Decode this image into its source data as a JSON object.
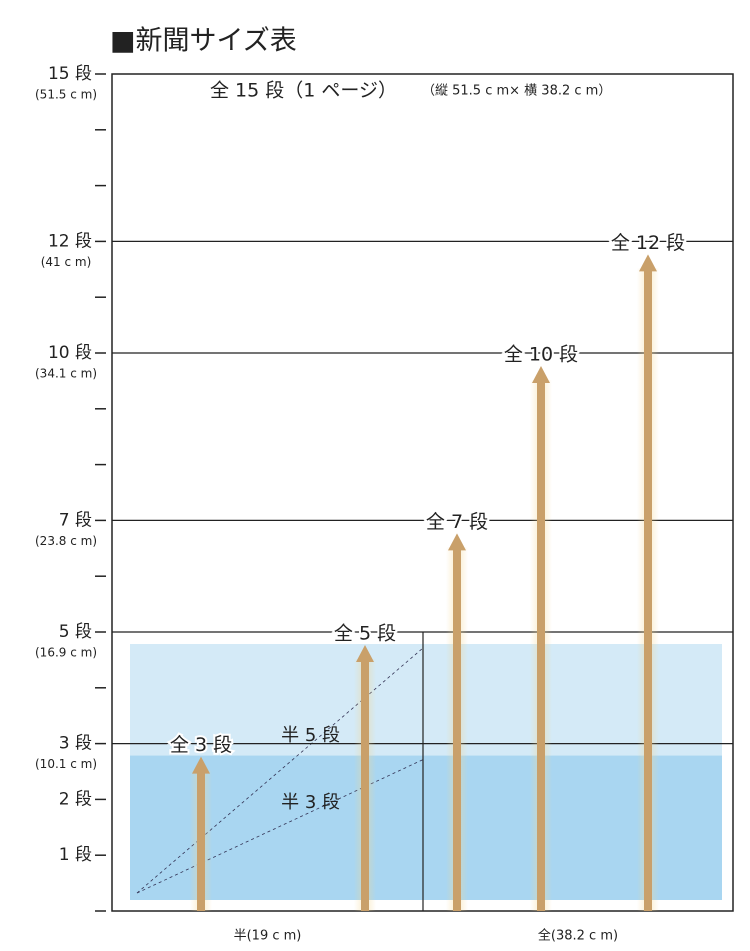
{
  "chart_data": {
    "type": "arrow",
    "title": "■新聞サイズ表",
    "note": "全 15 段（1 ページ）",
    "note_detail": "（縦 51.5 c m× 横 38.2 c m）",
    "categories": [
      "全 3 段",
      "全 5 段",
      "全 7 段",
      "全 10 段",
      "全 12 段"
    ],
    "values": [
      3,
      5,
      7,
      10,
      12
    ],
    "color": "#c9a06a",
    "ylim": [
      0,
      15
    ],
    "yticks": [
      {
        "value": 15,
        "label": "15 段",
        "note": "(51.5 c m)"
      },
      {
        "value": 12,
        "label": "12 段",
        "note": "(41 c m)"
      },
      {
        "value": 10,
        "label": "10 段",
        "note": "(34.1 c m)"
      },
      {
        "value": 7,
        "label": "7 段",
        "note": "(23.8 c m)"
      },
      {
        "value": 5,
        "label": "5 段",
        "note": "(16.9 c m)"
      },
      {
        "value": 3,
        "label": "3 段",
        "note": "(10.1 c m)"
      },
      {
        "value": 2,
        "label": "2 段"
      },
      {
        "value": 1,
        "label": "1 段"
      }
    ],
    "minor_yticks": [
      0,
      4,
      6,
      8,
      9,
      11,
      13,
      14
    ],
    "half_areas": [
      {
        "label": "半 5 段",
        "value": 5,
        "color": "#d4eaf7"
      },
      {
        "label": "半 3 段",
        "value": 3,
        "color": "#a9d6f1"
      }
    ],
    "x_labels": [
      "半(19 c m)",
      "全(38.2 c m)"
    ]
  }
}
